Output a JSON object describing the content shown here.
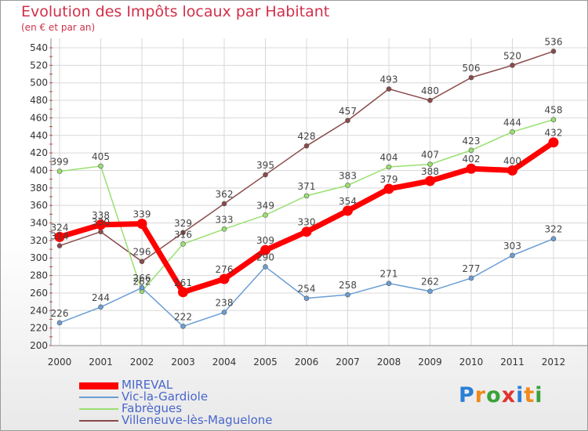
{
  "title": "Evolution des Impôts locaux par Habitant",
  "subtitle": "(en € et par an)",
  "brand": {
    "text": "Proxiti",
    "colors": [
      "#2a7fd6",
      "#f08a1c",
      "#3aa23a",
      "#e0342f",
      "#2a7fd6",
      "#f08a1c",
      "#3aa23a"
    ]
  },
  "chart_data": {
    "type": "line",
    "x": [
      2000,
      2001,
      2002,
      2003,
      2004,
      2005,
      2006,
      2007,
      2008,
      2009,
      2010,
      2011,
      2012
    ],
    "ylim": [
      200,
      540
    ],
    "yticks": [
      200,
      220,
      240,
      260,
      280,
      300,
      320,
      340,
      360,
      380,
      400,
      420,
      440,
      460,
      480,
      500,
      520,
      540
    ],
    "grid": true,
    "legend": "bottom-left",
    "series": [
      {
        "name": "MIREVAL",
        "color": "#ff0000",
        "values": [
          324,
          338,
          339,
          261,
          276,
          309,
          330,
          354,
          379,
          388,
          402,
          400,
          432
        ]
      },
      {
        "name": "Vic-la-Gardiole",
        "color": "#6b9ed4",
        "values": [
          226,
          244,
          266,
          222,
          238,
          290,
          254,
          258,
          271,
          262,
          277,
          303,
          322
        ]
      },
      {
        "name": "Fabrègues",
        "color": "#99e070",
        "values": [
          399,
          405,
          262,
          316,
          333,
          349,
          371,
          383,
          404,
          407,
          423,
          444,
          458
        ]
      },
      {
        "name": "Villeneuve-lès-Maguelone",
        "color": "#8a4a4a",
        "values": [
          314,
          330,
          296,
          329,
          362,
          395,
          428,
          457,
          493,
          480,
          506,
          520,
          536
        ]
      }
    ]
  }
}
